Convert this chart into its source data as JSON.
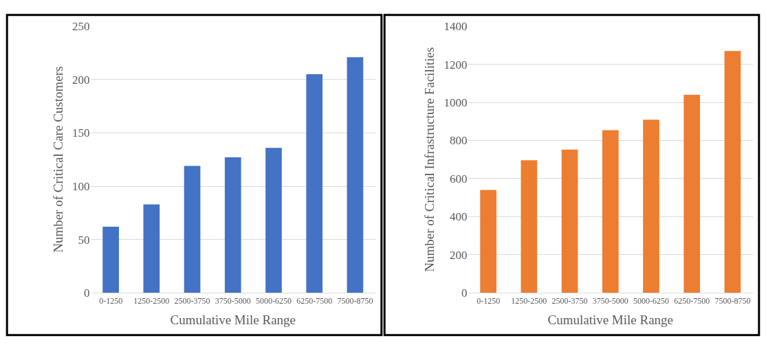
{
  "chart_data": [
    {
      "type": "bar",
      "xlabel": "Cumulative Mile Range",
      "ylabel": "Number of Critical Care Customers",
      "categories": [
        "0-1250",
        "1250-2500",
        "2500-3750",
        "3750-5000",
        "5000-6250",
        "6250-7500",
        "7500-8750"
      ],
      "values": [
        62,
        83,
        119,
        127,
        136,
        205,
        221
      ],
      "color": "#4472c4",
      "ylim": [
        0,
        250
      ],
      "yticks": [
        0,
        50,
        100,
        150,
        200,
        250
      ],
      "grid": "y"
    },
    {
      "type": "bar",
      "xlabel": "Cumulative Mile Range",
      "ylabel": "Number of Critical Infrastructure Facilities",
      "categories": [
        "0-1250",
        "1250-2500",
        "2500-3750",
        "3750-5000",
        "5000-6250",
        "6250-7500",
        "7500-8750"
      ],
      "values": [
        540,
        696,
        752,
        854,
        909,
        1040,
        1270
      ],
      "color": "#ed7d31",
      "ylim": [
        0,
        1400
      ],
      "yticks": [
        0,
        200,
        400,
        600,
        800,
        1000,
        1200,
        1400
      ],
      "grid": "y"
    }
  ]
}
